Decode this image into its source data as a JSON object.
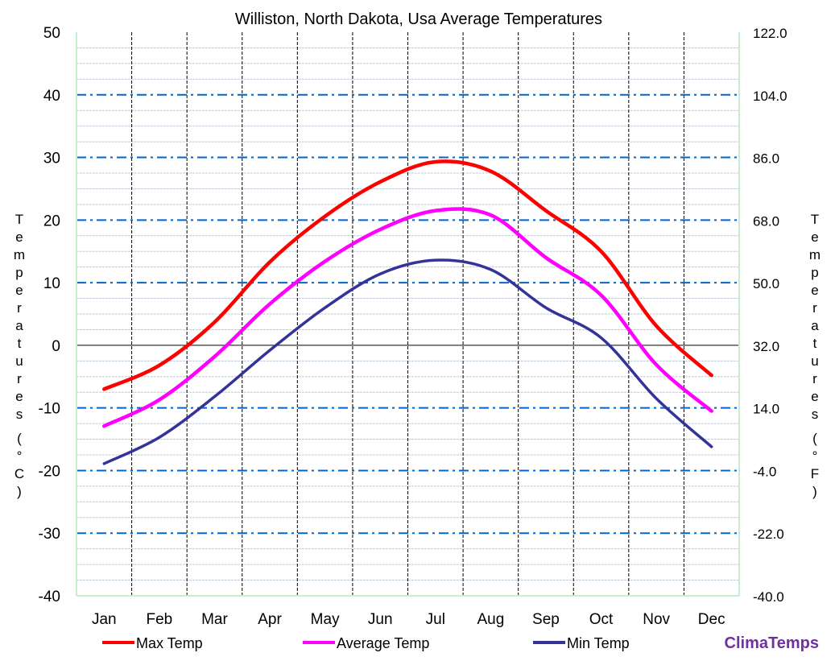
{
  "chart_data": {
    "type": "line",
    "title": "Williston, North Dakota, Usa Average Temperatures",
    "ylabel": "Temperatures (°C)",
    "y2label": "Temperatures (°F)",
    "categories": [
      "Jan",
      "Feb",
      "Mar",
      "Apr",
      "May",
      "Jun",
      "Jul",
      "Aug",
      "Sep",
      "Oct",
      "Nov",
      "Dec"
    ],
    "ylim": [
      -40,
      50
    ],
    "yticks": [
      "50",
      "40",
      "30",
      "20",
      "10",
      "0",
      "-10",
      "-20",
      "-30",
      "-40"
    ],
    "y2ticks": [
      "122.0",
      "104.0",
      "86.0",
      "68.0",
      "50.0",
      "32.0",
      "14.0",
      "-4.0",
      "-22.0",
      "-40.0"
    ],
    "series": [
      {
        "name": "Max Temp",
        "color": "#ff0000",
        "values": [
          -7,
          -3.2,
          3.7,
          13.3,
          20.6,
          26.1,
          29.3,
          27.8,
          21.5,
          15,
          3.1,
          -4.8
        ]
      },
      {
        "name": "Average Temp",
        "color": "#ff00ff",
        "values": [
          -12.9,
          -8.7,
          -1.8,
          6.6,
          13.4,
          18.5,
          21.5,
          20.8,
          14,
          8,
          -3.1,
          -10.5
        ]
      },
      {
        "name": "Min Temp",
        "color": "#333399",
        "values": [
          -18.9,
          -14.7,
          -8.2,
          -0.8,
          6,
          11.4,
          13.6,
          12.1,
          6,
          1.2,
          -8.5,
          -16.2
        ]
      }
    ]
  },
  "brand": "ClimaTemps"
}
